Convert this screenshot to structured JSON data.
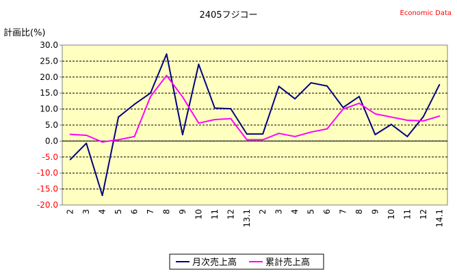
{
  "chart_data": {
    "type": "line",
    "title": "2405フジコー",
    "watermark": "Economic Data",
    "ylabel": "計画比(%)",
    "xlabel": "",
    "ylim": [
      -20,
      30
    ],
    "y_ticks": [
      "30.0",
      "25.0",
      "20.0",
      "15.0",
      "10.0",
      "5.0",
      "0.0",
      "-5.0",
      "-10.0",
      "-15.0",
      "-20.0"
    ],
    "y_tick_values": [
      30,
      25,
      20,
      15,
      10,
      5,
      0,
      -5,
      -10,
      -15,
      -20
    ],
    "categories": [
      "2",
      "3",
      "4",
      "5",
      "6",
      "7",
      "8",
      "9",
      "10",
      "11",
      "12",
      "13.1",
      "2",
      "3",
      "4",
      "5",
      "6",
      "7",
      "8",
      "9",
      "10",
      "11",
      "12",
      "14.1"
    ],
    "grid": true,
    "legend_position": "bottom",
    "plot_bg_color": "#ffffc0",
    "series": [
      {
        "name": "月次売上高",
        "color": "#000080",
        "values": [
          -5.8,
          -0.7,
          -17.0,
          7.5,
          11.5,
          15.0,
          27.2,
          2.0,
          24.0,
          10.3,
          10.1,
          2.2,
          2.2,
          17.1,
          13.2,
          18.2,
          17.2,
          10.5,
          13.9,
          2.0,
          5.2,
          1.4,
          7.6,
          17.6
        ]
      },
      {
        "name": "累計売上高",
        "color": "#ff00ff",
        "values": [
          2.1,
          1.8,
          -0.3,
          0.4,
          1.4,
          13.9,
          20.5,
          13.8,
          5.6,
          6.7,
          7.0,
          0.4,
          0.4,
          2.4,
          1.4,
          2.8,
          3.8,
          10.0,
          11.8,
          8.5,
          7.5,
          6.5,
          6.3,
          7.8
        ]
      }
    ]
  }
}
